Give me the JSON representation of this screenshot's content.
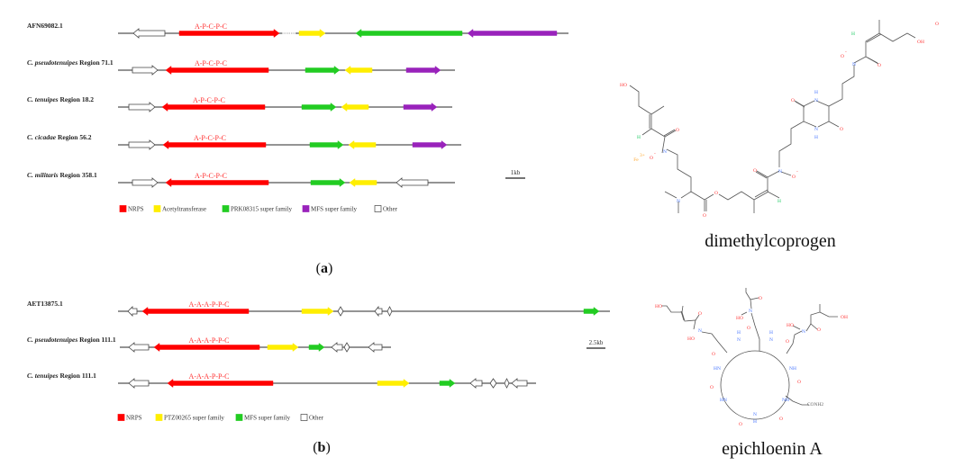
{
  "legend_colors": {
    "NRPS": "#ff0000",
    "yellow": "#ffee00",
    "green": "#22cc22",
    "purple": "#9922bb",
    "Other": "#ffffff"
  },
  "panel_a": {
    "label_open": "(",
    "label_letter": "a",
    "label_close": ")",
    "scale_label": "1kb",
    "domain_label": "A-P-C-P-C",
    "rows": [
      {
        "id": "AFN69082.1",
        "species": "",
        "region": "",
        "genes": [
          {
            "type": "Other",
            "dir": "left"
          },
          {
            "type": "NRPS",
            "dir": "right"
          },
          {
            "type": "yellow",
            "dir": "right"
          },
          {
            "type": "green",
            "dir": "left"
          },
          {
            "type": "purple",
            "dir": "left"
          }
        ]
      },
      {
        "id": "",
        "species": "C. pseudotenuipes",
        "region": "Region 71.1",
        "genes": [
          {
            "type": "Other",
            "dir": "right"
          },
          {
            "type": "NRPS",
            "dir": "left"
          },
          {
            "type": "green",
            "dir": "right"
          },
          {
            "type": "yellow",
            "dir": "left"
          },
          {
            "type": "purple",
            "dir": "right"
          }
        ]
      },
      {
        "id": "",
        "species": "C. tenuipes",
        "region": "Region 18.2",
        "genes": [
          {
            "type": "Other",
            "dir": "right"
          },
          {
            "type": "NRPS",
            "dir": "left"
          },
          {
            "type": "green",
            "dir": "right"
          },
          {
            "type": "yellow",
            "dir": "left"
          },
          {
            "type": "purple",
            "dir": "right"
          }
        ]
      },
      {
        "id": "",
        "species": "C. cicadae",
        "region": "Region 56.2",
        "genes": [
          {
            "type": "Other",
            "dir": "right"
          },
          {
            "type": "NRPS",
            "dir": "left"
          },
          {
            "type": "green",
            "dir": "right"
          },
          {
            "type": "yellow",
            "dir": "left"
          },
          {
            "type": "purple",
            "dir": "right"
          }
        ]
      },
      {
        "id": "",
        "species": "C. militaris",
        "region": "Region 358.1",
        "genes": [
          {
            "type": "Other",
            "dir": "right"
          },
          {
            "type": "NRPS",
            "dir": "left"
          },
          {
            "type": "green",
            "dir": "right"
          },
          {
            "type": "yellow",
            "dir": "left"
          },
          {
            "type": "Other",
            "dir": "left"
          }
        ]
      }
    ],
    "legend": [
      {
        "type": "NRPS",
        "label": "NRPS"
      },
      {
        "type": "yellow",
        "label": "Acetyltransferase"
      },
      {
        "type": "green",
        "label": "PRK08315 super family"
      },
      {
        "type": "purple",
        "label": "MFS super family"
      },
      {
        "type": "Other",
        "label": "Other"
      }
    ]
  },
  "panel_b": {
    "label_open": "(",
    "label_letter": "b",
    "label_close": ")",
    "scale_label": "2.5kb",
    "domain_label": "A-A-A-P-P-C",
    "rows": [
      {
        "id": "AET13875.1",
        "species": "",
        "region": "",
        "genes": [
          {
            "type": "Other",
            "dir": "left"
          },
          {
            "type": "NRPS",
            "dir": "left"
          },
          {
            "type": "yellow",
            "dir": "right"
          },
          {
            "type": "Other",
            "dir": "both"
          },
          {
            "type": "Other",
            "dir": "left"
          },
          {
            "type": "Other",
            "dir": "both"
          },
          {
            "type": "green",
            "dir": "right"
          }
        ]
      },
      {
        "id": "",
        "species": "C. pseudotenuipes",
        "region": "Region 111.1",
        "genes": [
          {
            "type": "Other",
            "dir": "left"
          },
          {
            "type": "NRPS",
            "dir": "left"
          },
          {
            "type": "yellow",
            "dir": "right"
          },
          {
            "type": "green",
            "dir": "right"
          },
          {
            "type": "Other",
            "dir": "left"
          },
          {
            "type": "Other",
            "dir": "both"
          },
          {
            "type": "Other",
            "dir": "left"
          }
        ]
      },
      {
        "id": "",
        "species": "C. tenuipes",
        "region": "Region 111.1",
        "genes": [
          {
            "type": "Other",
            "dir": "left"
          },
          {
            "type": "NRPS",
            "dir": "left"
          },
          {
            "type": "yellow",
            "dir": "right"
          },
          {
            "type": "green",
            "dir": "right"
          },
          {
            "type": "Other",
            "dir": "left"
          },
          {
            "type": "Other",
            "dir": "both"
          },
          {
            "type": "Other",
            "dir": "both"
          },
          {
            "type": "Other",
            "dir": "left"
          }
        ]
      }
    ],
    "legend": [
      {
        "type": "NRPS",
        "label": "NRPS"
      },
      {
        "type": "yellow",
        "label": "PTZ00265 super family"
      },
      {
        "type": "green",
        "label": "MFS super family"
      },
      {
        "type": "Other",
        "label": "Other"
      }
    ]
  },
  "compound_a": {
    "name": "dimethylcoprogen",
    "atoms": [
      "HO",
      "H",
      "O",
      "N",
      "O",
      "-",
      "Fe",
      "3+",
      "O",
      "N",
      "H",
      "N",
      "H",
      "O",
      "O",
      "N",
      "O",
      "-",
      "O",
      "H",
      "O",
      "O",
      "N",
      "H",
      "O",
      "N",
      "O",
      "-",
      "OH"
    ]
  },
  "compound_b": {
    "name": "epichloenin A",
    "atoms": [
      "HO",
      "O",
      "N",
      "HO",
      "O",
      "N",
      "HO",
      "O",
      "N",
      "HO",
      "OH",
      "H",
      "N",
      "O",
      "H",
      "N",
      "O",
      "NH",
      "O",
      "NH",
      "CONH2",
      "O",
      "N",
      "H",
      "O",
      "HN",
      "O",
      "HN",
      "O"
    ]
  }
}
